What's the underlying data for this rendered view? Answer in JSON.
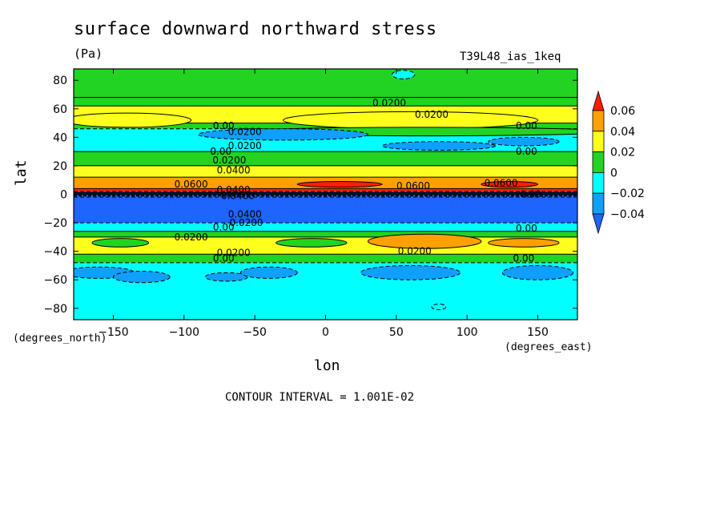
{
  "chart_data": {
    "type": "heatmap",
    "title": "surface downward northward stress",
    "units": "(Pa)",
    "run_label": "T39L48_ias_1keq",
    "xlabel": "lon",
    "ylabel": "lat",
    "x_unit_note": "(degrees_east)",
    "y_unit_note": "(degrees_north)",
    "footer": "CONTOUR INTERVAL = 1.001E-02",
    "xlim": [
      -178,
      178
    ],
    "ylim": [
      -88,
      88
    ],
    "x_ticks": [
      -150,
      -100,
      -50,
      0,
      50,
      100,
      150
    ],
    "x_tick_labels": [
      "−150",
      "−100",
      "−50",
      "0",
      "50",
      "100",
      "150"
    ],
    "y_ticks": [
      -80,
      -60,
      -40,
      -20,
      0,
      20,
      40,
      60,
      80
    ],
    "y_tick_labels": [
      "−80",
      "−60",
      "−40",
      "−20",
      "0",
      "20",
      "40",
      "60",
      "80"
    ],
    "colorbar": {
      "levels": [
        -0.04,
        -0.02,
        0,
        0.02,
        0.04,
        0.06
      ],
      "labels": [
        "−0.04",
        "−0.02",
        "0",
        "0.02",
        "0.04",
        "0.06"
      ],
      "colors": [
        "#1e64ff",
        "#0fa0ff",
        "#00ffff",
        "#22d322",
        "#ffff1e",
        "#ffa000",
        "#ff1e00"
      ]
    },
    "zonal_bands": [
      {
        "lat_from": 88,
        "lat_to": 68,
        "value": 0.01
      },
      {
        "lat_from": 68,
        "lat_to": 62,
        "value": 0.01
      },
      {
        "lat_from": 62,
        "lat_to": 50,
        "value": 0.03
      },
      {
        "lat_from": 50,
        "lat_to": 46,
        "value": 0.01
      },
      {
        "lat_from": 46,
        "lat_to": 30,
        "value": -0.01
      },
      {
        "lat_from": 30,
        "lat_to": 20,
        "value": 0.01
      },
      {
        "lat_from": 20,
        "lat_to": 12,
        "value": 0.03
      },
      {
        "lat_from": 12,
        "lat_to": 4,
        "value": 0.05
      },
      {
        "lat_from": 4,
        "lat_to": 2,
        "value": 0.07
      },
      {
        "lat_from": 2,
        "lat_to": -2,
        "value": -0.05
      },
      {
        "lat_from": -2,
        "lat_to": -20,
        "value": -0.05
      },
      {
        "lat_from": -20,
        "lat_to": -26,
        "value": -0.01
      },
      {
        "lat_from": -26,
        "lat_to": -30,
        "value": 0.01
      },
      {
        "lat_from": -30,
        "lat_to": -42,
        "value": 0.03
      },
      {
        "lat_from": -42,
        "lat_to": -48,
        "value": 0.01
      },
      {
        "lat_from": -48,
        "lat_to": -88,
        "value": -0.01
      }
    ],
    "features": [
      {
        "lon": -140,
        "lat": 52,
        "dlon": 45,
        "dlat": 5,
        "value": 0.03
      },
      {
        "lon": 60,
        "lat": 52,
        "dlon": 90,
        "dlat": 6,
        "value": 0.03
      },
      {
        "lon": 70,
        "lat": 44,
        "dlon": 130,
        "dlat": 3,
        "value": 0.01
      },
      {
        "lon": -30,
        "lat": 42,
        "dlon": 60,
        "dlat": 4,
        "value": -0.03
      },
      {
        "lon": 80,
        "lat": 34,
        "dlon": 40,
        "dlat": 3,
        "value": -0.03
      },
      {
        "lon": 140,
        "lat": 37,
        "dlon": 25,
        "dlat": 3,
        "value": -0.03
      },
      {
        "lon": 55,
        "lat": 84,
        "dlon": 8,
        "dlat": 3,
        "value": -0.01
      },
      {
        "lon": 10,
        "lat": 7,
        "dlon": 30,
        "dlat": 2,
        "value": 0.07
      },
      {
        "lon": 130,
        "lat": 7,
        "dlon": 20,
        "dlat": 2,
        "value": 0.07
      },
      {
        "lon": -145,
        "lat": -34,
        "dlon": 20,
        "dlat": 3,
        "value": 0.01
      },
      {
        "lon": -10,
        "lat": -34,
        "dlon": 25,
        "dlat": 3,
        "value": 0.01
      },
      {
        "lon": 70,
        "lat": -33,
        "dlon": 40,
        "dlat": 5,
        "value": 0.05
      },
      {
        "lon": 140,
        "lat": -34,
        "dlon": 25,
        "dlat": 3,
        "value": 0.05
      },
      {
        "lon": -160,
        "lat": -55,
        "dlon": 25,
        "dlat": 4,
        "value": -0.03
      },
      {
        "lon": -130,
        "lat": -58,
        "dlon": 20,
        "dlat": 4,
        "value": -0.03
      },
      {
        "lon": -70,
        "lat": -58,
        "dlon": 15,
        "dlat": 3,
        "value": -0.03
      },
      {
        "lon": -40,
        "lat": -55,
        "dlon": 20,
        "dlat": 4,
        "value": -0.03
      },
      {
        "lon": 60,
        "lat": -55,
        "dlon": 35,
        "dlat": 5,
        "value": -0.03
      },
      {
        "lon": 150,
        "lat": -55,
        "dlon": 25,
        "dlat": 5,
        "value": -0.03
      },
      {
        "lon": 80,
        "lat": -79,
        "dlon": 5,
        "dlat": 2,
        "value": -0.01
      }
    ],
    "contour_labels": [
      {
        "text": "0.0200",
        "lon": 45,
        "lat": 64
      },
      {
        "text": "0.0200",
        "lon": 75,
        "lat": 56
      },
      {
        "text": "0.00",
        "lon": -72,
        "lat": 48
      },
      {
        "text": "0.0200",
        "lon": -57,
        "lat": 44
      },
      {
        "text": "0.00",
        "lon": 142,
        "lat": 48
      },
      {
        "text": "0.0200",
        "lon": -57,
        "lat": 34
      },
      {
        "text": "0.00",
        "lon": -74,
        "lat": 30
      },
      {
        "text": "0.00",
        "lon": 142,
        "lat": 30
      },
      {
        "text": "0.0200",
        "lon": -68,
        "lat": 24
      },
      {
        "text": "0.0400",
        "lon": -65,
        "lat": 17
      },
      {
        "text": "0.0600",
        "lon": -95,
        "lat": 7
      },
      {
        "text": "0.0600",
        "lon": 62,
        "lat": 6
      },
      {
        "text": "0.0600",
        "lon": 124,
        "lat": 8
      },
      {
        "text": "0.0400",
        "lon": -65,
        "lat": 3
      },
      {
        "text": "0.0400",
        "lon": -62,
        "lat": -1
      },
      {
        "text": "0.00",
        "lon": 145,
        "lat": 0
      },
      {
        "text": "0.0400",
        "lon": -57,
        "lat": -14
      },
      {
        "text": "0.0200",
        "lon": -56,
        "lat": -20
      },
      {
        "text": "0.00",
        "lon": -72,
        "lat": -23
      },
      {
        "text": "0.00",
        "lon": 142,
        "lat": -24
      },
      {
        "text": "0.0200",
        "lon": -95,
        "lat": -30
      },
      {
        "text": "0.0200",
        "lon": 63,
        "lat": -40
      },
      {
        "text": "0.0200",
        "lon": -65,
        "lat": -41
      },
      {
        "text": "0.00",
        "lon": -72,
        "lat": -45
      },
      {
        "text": "0.00",
        "lon": 140,
        "lat": -45
      }
    ]
  }
}
